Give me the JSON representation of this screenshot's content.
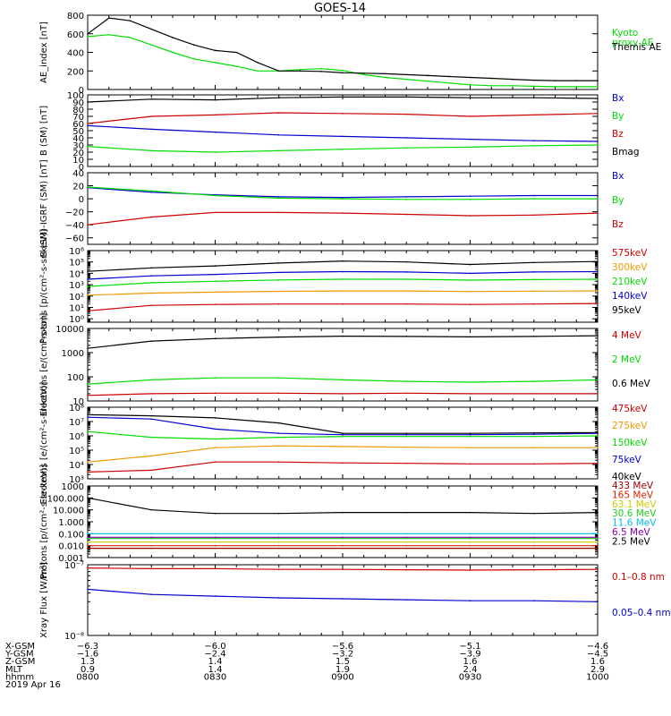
{
  "title": "GOES-14",
  "colors": {
    "black": "#000000",
    "green": "#00dd00",
    "red": "#cc0000",
    "blue": "#0000cc",
    "orange": "#ee9900",
    "lime": "#22cc22",
    "cyan": "#00bbee",
    "darkred": "#990000",
    "yellow": "#cccc00",
    "purple": "#8800aa",
    "firered": "#dd2200"
  },
  "chart_data": [
    {
      "type": "line",
      "id": "ae",
      "ylabel": "AE_index [nT]",
      "ylim": [
        0,
        800
      ],
      "yscale": "linear",
      "ticks": [
        0,
        200,
        400,
        600,
        800
      ],
      "tick_labels": [
        "0",
        "200",
        "400",
        "600",
        "800"
      ],
      "x": [
        800,
        805,
        810,
        815,
        820,
        825,
        830,
        835,
        840,
        845,
        850,
        855,
        900,
        905,
        910,
        915,
        920,
        925,
        930,
        935,
        940,
        945,
        950,
        955,
        1000
      ],
      "series": [
        {
          "name": "Kyoto proxy AE",
          "legend": [
            "Kyoto",
            "proxy AE"
          ],
          "color": "#00dd00",
          "values": [
            570,
            590,
            560,
            480,
            400,
            330,
            290,
            250,
            200,
            200,
            215,
            225,
            205,
            160,
            130,
            110,
            90,
            70,
            50,
            40,
            40,
            35,
            30,
            30,
            30
          ]
        },
        {
          "name": "Themis AE",
          "legend": [
            "Themis AE"
          ],
          "color": "#000000",
          "values": [
            600,
            770,
            740,
            650,
            560,
            480,
            420,
            400,
            290,
            200,
            200,
            195,
            180,
            175,
            170,
            160,
            150,
            140,
            130,
            120,
            110,
            100,
            95,
            95,
            95
          ]
        }
      ]
    },
    {
      "type": "line",
      "id": "bsm",
      "ylabel": "B (SM) [nT]",
      "ylim": [
        0,
        100
      ],
      "yscale": "linear",
      "ticks": [
        0,
        10,
        20,
        30,
        40,
        50,
        60,
        70,
        80,
        90,
        100
      ],
      "tick_labels": [
        "0",
        "10",
        "20",
        "30",
        "40",
        "50",
        "60",
        "70",
        "80",
        "90",
        "100"
      ],
      "x": [
        800,
        815,
        830,
        845,
        900,
        915,
        930,
        945,
        1000
      ],
      "series": [
        {
          "name": "Bx",
          "color": "#0000cc",
          "values": [
            57,
            52,
            48,
            44,
            42,
            40,
            38,
            36,
            35
          ]
        },
        {
          "name": "By",
          "color": "#00dd00",
          "values": [
            28,
            22,
            20,
            22,
            24,
            26,
            27,
            29,
            30
          ]
        },
        {
          "name": "Bz",
          "color": "#cc0000",
          "values": [
            60,
            70,
            72,
            75,
            74,
            73,
            70,
            72,
            74
          ]
        },
        {
          "name": "Bmag",
          "color": "#000000",
          "values": [
            90,
            94,
            93,
            96,
            97,
            97,
            96,
            96,
            95
          ]
        }
      ]
    },
    {
      "type": "line",
      "id": "bigrf",
      "ylabel": "B (SM)-IGRF (SM) [nT]",
      "ylim": [
        -70,
        40
      ],
      "yscale": "linear",
      "ticks": [
        -60,
        -40,
        -20,
        0,
        20,
        40
      ],
      "tick_labels": [
        "−60",
        "−40",
        "−20",
        "0",
        "20",
        "40"
      ],
      "x": [
        800,
        815,
        830,
        845,
        900,
        915,
        930,
        945,
        1000
      ],
      "series": [
        {
          "name": "Bx",
          "color": "#0000cc",
          "values": [
            17,
            10,
            6,
            3,
            2,
            3,
            4,
            5,
            5
          ]
        },
        {
          "name": "By",
          "color": "#00dd00",
          "values": [
            18,
            12,
            5,
            1,
            0,
            -1,
            -1,
            0,
            0
          ]
        },
        {
          "name": "Bz",
          "color": "#cc0000",
          "values": [
            -40,
            -28,
            -21,
            -21,
            -22,
            -24,
            -26,
            -25,
            -22
          ]
        }
      ]
    },
    {
      "type": "line",
      "id": "protons1",
      "ylabel": "Protons [p/(cm²-s-sr-keV)]",
      "ylim": [
        0.5,
        1000000
      ],
      "yscale": "log",
      "ticks": [
        1,
        10,
        100,
        1000,
        10000,
        100000,
        1000000
      ],
      "tick_labels": [
        "10⁰",
        "10¹",
        "10²",
        "10³",
        "10⁴",
        "10⁵",
        "10⁶"
      ],
      "x": [
        800,
        815,
        830,
        845,
        900,
        915,
        930,
        945,
        1000
      ],
      "series": [
        {
          "name": "575keV",
          "color": "#cc0000",
          "values": [
            5,
            15,
            18,
            20,
            20,
            20,
            18,
            20,
            22
          ]
        },
        {
          "name": "300keV",
          "color": "#ee9900",
          "values": [
            120,
            180,
            220,
            260,
            280,
            280,
            250,
            270,
            280
          ]
        },
        {
          "name": "210keV",
          "color": "#00dd00",
          "values": [
            700,
            1500,
            2000,
            2600,
            3000,
            3000,
            2500,
            2800,
            3000
          ]
        },
        {
          "name": "140keV",
          "color": "#0000cc",
          "values": [
            3000,
            6000,
            8000,
            12000,
            14000,
            13000,
            10000,
            13000,
            14000
          ]
        },
        {
          "name": "95keV",
          "color": "#000000",
          "values": [
            15000,
            30000,
            45000,
            80000,
            120000,
            100000,
            60000,
            90000,
            110000
          ]
        }
      ]
    },
    {
      "type": "line",
      "id": "electrons1",
      "ylabel": "Electrons [e/(cm²-s-sr)]",
      "ylim": [
        10,
        10000
      ],
      "yscale": "log",
      "ticks": [
        10,
        100,
        1000,
        10000
      ],
      "tick_labels": [
        "10",
        "100",
        "1000",
        "10000"
      ],
      "x": [
        800,
        815,
        830,
        845,
        900,
        915,
        930,
        945,
        1000
      ],
      "series": [
        {
          "name": "4 MeV",
          "color": "#cc0000",
          "values": [
            17,
            20,
            21,
            21,
            20,
            21,
            20,
            20,
            20
          ]
        },
        {
          "name": "2 MeV",
          "color": "#00dd00",
          "values": [
            50,
            75,
            90,
            90,
            75,
            65,
            60,
            65,
            75
          ]
        },
        {
          "name": "0.6 MeV",
          "color": "#000000",
          "values": [
            1500,
            3000,
            3800,
            4400,
            4800,
            4700,
            4500,
            4700,
            5000
          ]
        }
      ]
    },
    {
      "type": "line",
      "id": "electrons2",
      "ylabel": "Electrons [e/(cm²-s-sr-keV)]",
      "ylim": [
        1000,
        100000000
      ],
      "yscale": "log",
      "ticks": [
        1000,
        10000,
        100000,
        1000000,
        10000000,
        100000000
      ],
      "tick_labels": [
        "10³",
        "10⁴",
        "10⁵",
        "10⁶",
        "10⁷",
        "10⁸"
      ],
      "x": [
        800,
        815,
        830,
        845,
        900,
        915,
        930,
        945,
        1000
      ],
      "series": [
        {
          "name": "475keV",
          "color": "#cc0000",
          "values": [
            3000,
            4000,
            15000,
            15000,
            13000,
            12000,
            11000,
            11000,
            12000
          ]
        },
        {
          "name": "275keV",
          "color": "#ee9900",
          "values": [
            15000,
            40000,
            150000,
            200000,
            180000,
            160000,
            150000,
            150000,
            150000
          ]
        },
        {
          "name": "150keV",
          "color": "#00dd00",
          "values": [
            2000000,
            800000,
            600000,
            800000,
            900000,
            900000,
            900000,
            900000,
            1000000
          ]
        },
        {
          "name": "75keV",
          "color": "#0000cc",
          "values": [
            20000000,
            15000000,
            3000000,
            1500000,
            1200000,
            1200000,
            1200000,
            1300000,
            1500000
          ]
        },
        {
          "name": "40keV",
          "color": "#000000",
          "values": [
            30000000,
            25000000,
            18000000,
            8000000,
            1500000,
            1500000,
            1500000,
            1600000,
            1700000
          ]
        }
      ]
    },
    {
      "type": "line",
      "id": "protons2",
      "ylabel": "Protons [p/(cm²-s-sr-keV)]",
      "ylim": [
        0.001,
        1000
      ],
      "yscale": "log",
      "ticks": [
        0.001,
        0.01,
        0.1,
        1,
        10,
        100
      ],
      "tick_labels": [
        "0.001",
        "0.010",
        "0.100",
        "1.000",
        "10.000",
        "100.000"
      ],
      "top_tick_label": "1000",
      "x": [
        800,
        815,
        830,
        845,
        900,
        915,
        930,
        945,
        1000
      ],
      "series": [
        {
          "name": "433 MeV",
          "color": "#990000",
          "values": [
            0.006,
            0.006,
            0.006,
            0.006,
            0.006,
            0.006,
            0.006,
            0.006,
            0.006
          ]
        },
        {
          "name": "165 MeV",
          "color": "#dd2200",
          "values": [
            0.01,
            0.01,
            0.01,
            0.01,
            0.01,
            0.01,
            0.01,
            0.01,
            0.01
          ]
        },
        {
          "name": "63.1 MeV",
          "color": "#cccc00",
          "values": [
            0.02,
            0.02,
            0.02,
            0.02,
            0.02,
            0.02,
            0.02,
            0.02,
            0.02
          ]
        },
        {
          "name": "30.6 MeV",
          "color": "#22cc22",
          "values": [
            0.04,
            0.04,
            0.04,
            0.04,
            0.04,
            0.04,
            0.04,
            0.04,
            0.04
          ]
        },
        {
          "name": "11.6 MeV",
          "color": "#00bbee",
          "values": [
            0.1,
            0.1,
            0.1,
            0.1,
            0.1,
            0.1,
            0.1,
            0.1,
            0.1
          ]
        },
        {
          "name": "6.5 MeV",
          "color": "#8800aa",
          "values": [
            0.05,
            0.05,
            0.05,
            0.05,
            0.05,
            0.05,
            0.05,
            0.05,
            0.05
          ]
        },
        {
          "name": "2.5 MeV",
          "color": "#000000",
          "values": [
            100,
            10,
            5,
            5,
            6,
            6,
            6,
            5,
            6
          ]
        }
      ]
    },
    {
      "type": "line",
      "id": "xray",
      "ylabel": "Xray Flux [W/m²]",
      "ylim": [
        1e-08,
        1e-07
      ],
      "yscale": "log",
      "ticks": [
        1e-08,
        1e-07
      ],
      "tick_labels": [
        "10⁻⁸",
        "10⁻⁷"
      ],
      "x": [
        800,
        815,
        830,
        845,
        900,
        915,
        930,
        945,
        1000
      ],
      "series": [
        {
          "name": "0.1–0.8 nm",
          "color": "#cc0000",
          "values": [
            9e-08,
            8.8e-08,
            8.8e-08,
            8.6e-08,
            8.6e-08,
            8.5e-08,
            8.4e-08,
            8.5e-08,
            8.6e-08
          ]
        },
        {
          "name": "0.05–0.4 nm",
          "color": "#0000cc",
          "values": [
            4.5e-08,
            3.8e-08,
            3.6e-08,
            3.4e-08,
            3.3e-08,
            3.2e-08,
            3.1e-08,
            3.1e-08,
            3e-08
          ]
        }
      ]
    }
  ],
  "x_axis": {
    "tick_minutes": [
      0,
      30,
      60,
      90,
      120
    ],
    "rows": [
      {
        "label": "X-GSM",
        "values": [
          "−6.3",
          "−6.0",
          "−5.6",
          "−5.1",
          "−4.6"
        ]
      },
      {
        "label": "Y-GSM",
        "values": [
          "−1.6",
          "−2.4",
          "−3.2",
          "−3.9",
          "−4.5"
        ]
      },
      {
        "label": "Z-GSM",
        "values": [
          "1.3",
          "1.4",
          "1.5",
          "1.6",
          "1.6"
        ]
      },
      {
        "label": "MLT",
        "values": [
          "0.9",
          "1.4",
          "1.9",
          "2.4",
          "2.9"
        ]
      },
      {
        "label": "hhmm",
        "values": [
          "0800",
          "0830",
          "0900",
          "0930",
          "1000"
        ]
      }
    ],
    "date": "2019 Apr 16"
  }
}
